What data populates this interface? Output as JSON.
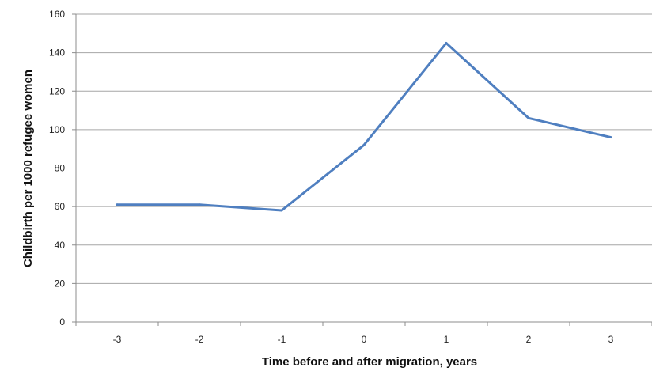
{
  "chart_data": {
    "type": "line",
    "title": "",
    "xlabel": "Time before and after migration, years",
    "ylabel": "Childbirth per 1000 refugee women",
    "categories": [
      "-3",
      "-2",
      "-1",
      "0",
      "1",
      "2",
      "3"
    ],
    "series": [
      {
        "values": [
          61,
          61,
          58,
          92,
          145,
          106,
          96
        ]
      }
    ],
    "ylim": [
      0,
      160
    ],
    "yticks": [
      0,
      20,
      40,
      60,
      80,
      100,
      120,
      140,
      160
    ],
    "grid": true,
    "legend": "none",
    "colors": {
      "line": "#4f7fc0",
      "grid": "#a6a6a6",
      "axis": "#8c8c8c"
    }
  }
}
